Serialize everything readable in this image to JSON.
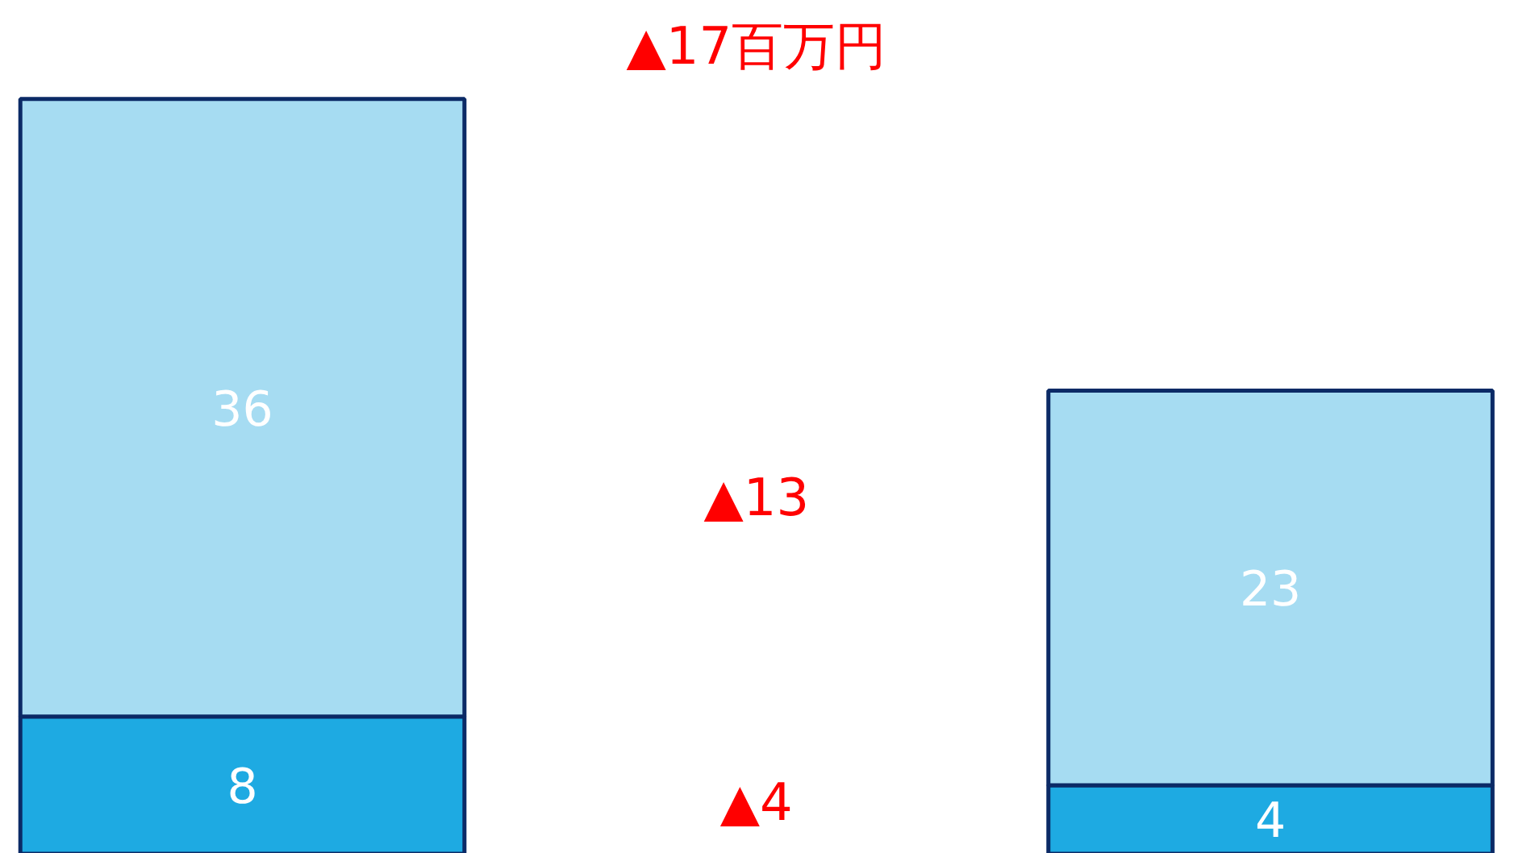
{
  "chart_data": {
    "type": "bar",
    "stacked": true,
    "categories": [
      null,
      null
    ],
    "series": [
      {
        "color": "#1eaae2",
        "values": [
          8,
          4
        ]
      },
      {
        "color": "#a6dcf2",
        "values": [
          36,
          23
        ]
      }
    ],
    "data_labels": true,
    "grid": false,
    "annotations": [
      "▲17百万円",
      "▲13",
      "▲4"
    ]
  }
}
